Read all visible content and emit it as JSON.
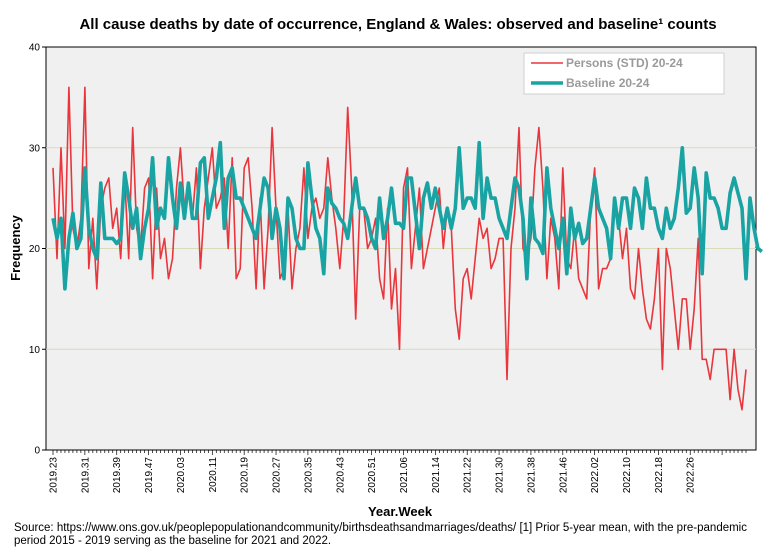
{
  "chart_data": {
    "type": "line",
    "title": "All cause deaths by date of occurrence, England & Wales: observed and baseline¹ counts",
    "xlabel": "Year.Week",
    "ylabel": "Frequency",
    "ylim": [
      0,
      40
    ],
    "yticks": [
      0,
      10,
      20,
      30,
      40
    ],
    "grid": true,
    "legend_position": "top-right",
    "colors": {
      "observed": "#e8363c",
      "baseline": "#1aa3a3",
      "plot_bg": "#f0f0f0",
      "grid": "#d8dcb8"
    },
    "x_tick_labels": [
      "2019.23",
      "2019.31",
      "2019.39",
      "2019.47",
      "2020.03",
      "2020.11",
      "2020.19",
      "2020.27",
      "2020.35",
      "2020.43",
      "2020.51",
      "2021.06",
      "2021.14",
      "2021.22",
      "2021.30",
      "2021.38",
      "2021.46",
      "2022.02",
      "2022.10",
      "2022.18",
      "2022.26"
    ],
    "series": [
      {
        "name": "Persons (STD) 20-24",
        "values": [
          28,
          19,
          30,
          20,
          36,
          22,
          20,
          23,
          36,
          18,
          23,
          16,
          24,
          26,
          27,
          22,
          24,
          19,
          27,
          19,
          32,
          22,
          20,
          26,
          27,
          17,
          26,
          19,
          21,
          17,
          19,
          26,
          30,
          24,
          26,
          23,
          28,
          18,
          24,
          27,
          30,
          24,
          25,
          27,
          20,
          29,
          17,
          18,
          28,
          29,
          24,
          16,
          25,
          16,
          22,
          32,
          24,
          17,
          18,
          24,
          16,
          20,
          22,
          28,
          21,
          24,
          25,
          23,
          24,
          29,
          25,
          22,
          18,
          23,
          34,
          26,
          13,
          24,
          24,
          20,
          21,
          23,
          17,
          15,
          24,
          14,
          18,
          10,
          26,
          28,
          18,
          22,
          26,
          18,
          20,
          22,
          24,
          26,
          20,
          24,
          22,
          14,
          11,
          17,
          18,
          15,
          19,
          23,
          21,
          22,
          18,
          19,
          21,
          21,
          7,
          20,
          24,
          32,
          20,
          19,
          21,
          28,
          32,
          26,
          17,
          23,
          21,
          16,
          28,
          19,
          18,
          22,
          17,
          16,
          15,
          24,
          28,
          16,
          18,
          18,
          19,
          25,
          23,
          19,
          22,
          16,
          15,
          20,
          16,
          13,
          12,
          15,
          20,
          8,
          20,
          18,
          14,
          10,
          15,
          15,
          10,
          14,
          21,
          9,
          9,
          7,
          10,
          10,
          10,
          10,
          5,
          10,
          6,
          4,
          8
        ]
      },
      {
        "name": "Baseline 20-24",
        "values": [
          23,
          21,
          23,
          16,
          21,
          23.5,
          20,
          21,
          28,
          22,
          20,
          19,
          26.5,
          21,
          21,
          21,
          20.5,
          21,
          27.5,
          25,
          22,
          24,
          19,
          22,
          24,
          29,
          22,
          24,
          23,
          29,
          25,
          22,
          26.5,
          23,
          26.5,
          23,
          23,
          28.5,
          29,
          23,
          25,
          27,
          30.5,
          22,
          27,
          28,
          25,
          25,
          24,
          23,
          22,
          21,
          24,
          27,
          26,
          21,
          24,
          22,
          17,
          25,
          24,
          21,
          20,
          20,
          28.5,
          25,
          22,
          21,
          17.5,
          26,
          24.5,
          24,
          23,
          22.5,
          21,
          24,
          27,
          24,
          24,
          23,
          21,
          20,
          25,
          21,
          23,
          26,
          22.5,
          22.5,
          22,
          27,
          27,
          23.5,
          20,
          25,
          26.5,
          24,
          26,
          24,
          22,
          24,
          22,
          24,
          30,
          24,
          25,
          25,
          24,
          30.5,
          23,
          27,
          25,
          25,
          23,
          22,
          21,
          24,
          27,
          26,
          23,
          17,
          25,
          21,
          20.5,
          19.5,
          28,
          24,
          22,
          20,
          23,
          17.5,
          24,
          21,
          22.5,
          20.5,
          21,
          24,
          27,
          24,
          23,
          22,
          19,
          25,
          22,
          25,
          25,
          22,
          26,
          25,
          22,
          27,
          24,
          24,
          22,
          21,
          24,
          22,
          23,
          26,
          30,
          23.5,
          24,
          28,
          25,
          17.5,
          27.5,
          25,
          25,
          24,
          22,
          22,
          25.5,
          27,
          25.5,
          24,
          17,
          25,
          22,
          20,
          19.7
        ]
      }
    ]
  },
  "source_text": "Source: https://www.ons.gov.uk/peoplepopulationandcommunity/birthsdeathsandmarriages/deaths/  [1] Prior 5-year mean, with the pre-pandemic period 2015 - 2019 serving as the baseline for 2021 and 2022."
}
